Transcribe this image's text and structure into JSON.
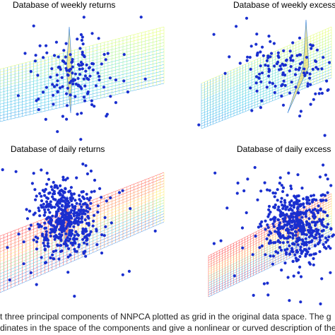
{
  "panels": [
    {
      "title": "Database of weekly returns",
      "palette": "cool"
    },
    {
      "title": "Database of weekly excess",
      "palette": "cool"
    },
    {
      "title": "Database of daily returns",
      "palette": "warm"
    },
    {
      "title": "Database of daily excess",
      "palette": "warm"
    }
  ],
  "caption": {
    "line1": "t three principal components of NNPCA plotted as grid in the original data space. The g",
    "line2": "dinates in the space of the components and give a nonlinear or curved description of the"
  },
  "colors": {
    "dots": "#1a2fcf",
    "mesh_cool": [
      "#d9ff4a",
      "#9bf27a",
      "#45d6c8",
      "#1ec0e8",
      "#1b9ce8"
    ],
    "mesh_warm": [
      "#ff2a2a",
      "#ff7a3a",
      "#ffe84a",
      "#7ae87a",
      "#1ec8e0",
      "#1b7ee8"
    ]
  }
}
